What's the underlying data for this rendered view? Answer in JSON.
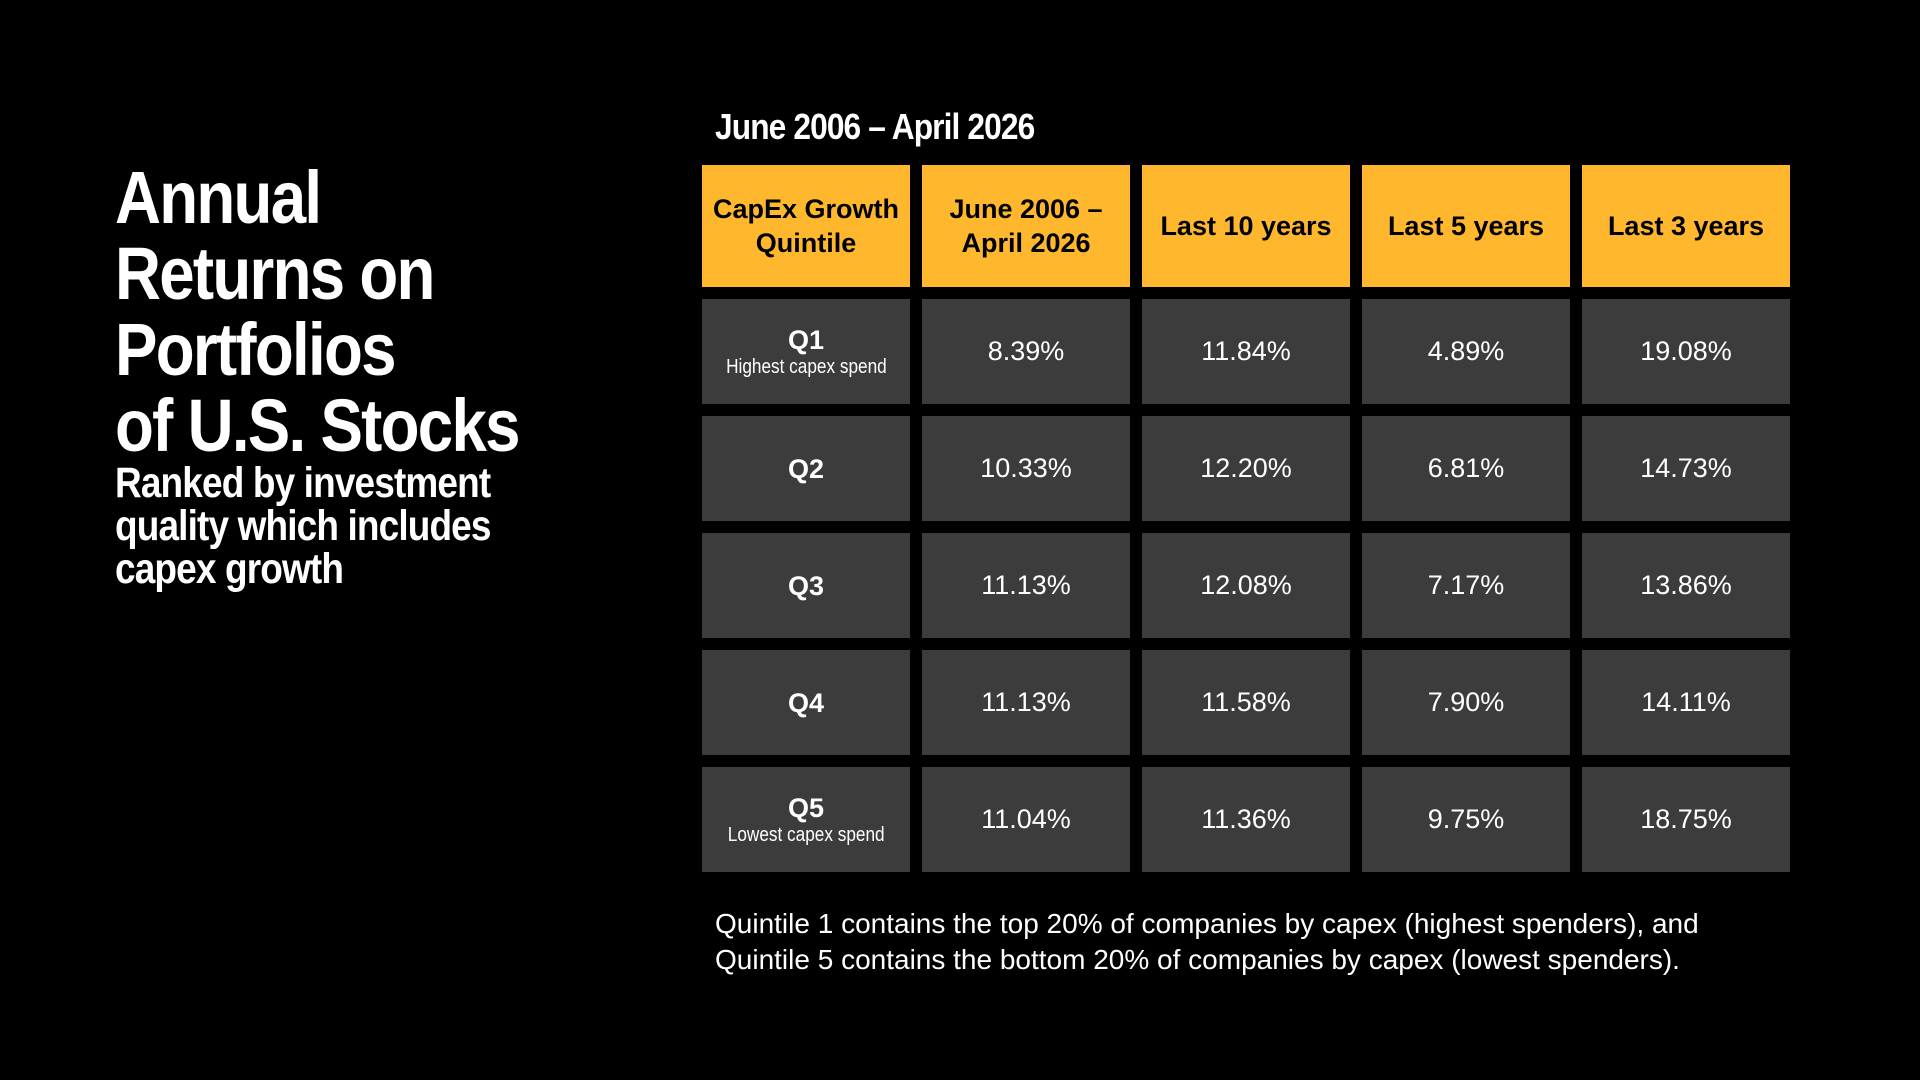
{
  "title": "Annual\nReturns on\nPortfolios\nof U.S. Stocks",
  "subtitle": "Ranked by investment\nquality which includes\ncapex growth",
  "period_label": "June 2006 – April 2026",
  "footnote": "Quintile 1 contains the top 20% of companies by capex (highest spenders), and Quintile 5 contains the bottom 20% of companies by capex (lowest spenders).",
  "colors": {
    "header_bg": "#ffb82e",
    "cell_bg": "#3c3c3c",
    "background": "#000000"
  },
  "chart_data": {
    "type": "table",
    "columns": [
      "CapEx Growth\nQuintile",
      "June 2006 –\nApril 2026",
      "Last 10 years",
      "Last 5 years",
      "Last 3 years"
    ],
    "rows": [
      {
        "quintile": "Q1",
        "note": "Highest capex spend",
        "values": [
          "8.39%",
          "11.84%",
          "4.89%",
          "19.08%"
        ]
      },
      {
        "quintile": "Q2",
        "note": "",
        "values": [
          "10.33%",
          "12.20%",
          "6.81%",
          "14.73%"
        ]
      },
      {
        "quintile": "Q3",
        "note": "",
        "values": [
          "11.13%",
          "12.08%",
          "7.17%",
          "13.86%"
        ]
      },
      {
        "quintile": "Q4",
        "note": "",
        "values": [
          "11.13%",
          "11.58%",
          "7.90%",
          "14.11%"
        ]
      },
      {
        "quintile": "Q5",
        "note": "Lowest capex spend",
        "values": [
          "11.04%",
          "11.36%",
          "9.75%",
          "18.75%"
        ]
      }
    ]
  }
}
